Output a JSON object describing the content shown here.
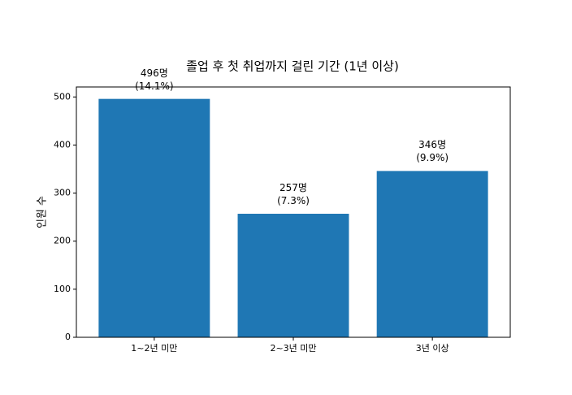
{
  "chart_data": {
    "type": "bar",
    "title": "졸업 후 첫 취업까지 걸린 기간 (1년 이상)",
    "y_label": "인원 수",
    "categories": [
      "1~2년 미만",
      "2~3년 미만",
      "3년 이상"
    ],
    "values": [
      496,
      257,
      346
    ],
    "value_labels": [
      "496명\n(14.1%)",
      "257명\n(7.3%)",
      "346명\n(9.9%)"
    ],
    "color": "#1f77b4",
    "ylim": [
      0,
      520.8
    ],
    "yticks": [
      0,
      100,
      200,
      300,
      400,
      500
    ]
  }
}
